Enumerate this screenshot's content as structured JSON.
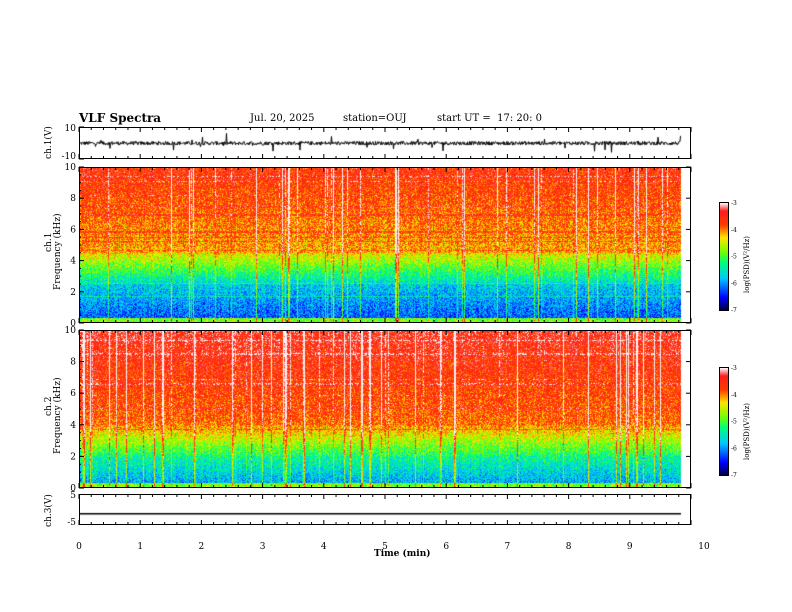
{
  "header": {
    "title": "VLF Spectra",
    "date": "Jul. 20, 2025",
    "station": "station=OUJ",
    "start": "start UT =  17: 20: 0"
  },
  "chart_data": [
    {
      "type": "line",
      "name": "ch1-waveform",
      "ylabel": "ch.1(V)",
      "ylim": [
        -10,
        10
      ],
      "yticks": [
        "10",
        "-10"
      ],
      "xlim": [
        0,
        10
      ],
      "description_values": "noise waveform around 0 V with spikes"
    },
    {
      "type": "heatmap",
      "name": "ch1-spectrogram",
      "ylabel": "ch.1\nFrequency (kHz)",
      "ylim": [
        0,
        10
      ],
      "yticks": [
        "0",
        "2",
        "4",
        "6",
        "8",
        "10"
      ],
      "xlim": [
        0,
        9.85
      ],
      "colorbar": {
        "label": "log(PSD)(V²/Hz)",
        "ticks": [
          "-3",
          "-4",
          "-5",
          "-6",
          "-7"
        ]
      }
    },
    {
      "type": "heatmap",
      "name": "ch2-spectrogram",
      "ylabel": "ch.2\nFrequency (kHz)",
      "ylim": [
        0,
        10
      ],
      "yticks": [
        "0",
        "2",
        "4",
        "6",
        "8",
        "10"
      ],
      "xlim": [
        0,
        9.85
      ],
      "colorbar": {
        "label": "log(PSD)(V²/Hz)",
        "ticks": [
          "-3",
          "-4",
          "-5",
          "-6",
          "-7"
        ]
      }
    },
    {
      "type": "line",
      "name": "ch3-waveform",
      "ylabel": "ch.3(V)",
      "ylim": [
        -5,
        5
      ],
      "yticks": [
        "5",
        "-5"
      ],
      "values_constant": -1.5,
      "xlim": [
        0,
        10
      ]
    }
  ],
  "xaxis": {
    "label": "Time (min)",
    "ticks": [
      "0",
      "1",
      "2",
      "3",
      "4",
      "5",
      "6",
      "7",
      "8",
      "9",
      "10"
    ]
  },
  "labels": {
    "ch1_v": "ch.1(V)",
    "ch1_freq": "ch.1",
    "freq": "Frequency (kHz)",
    "ch2_freq": "ch.2",
    "ch3_v": "ch.3(V)",
    "cbar": "log(PSD)(V²/Hz)"
  }
}
